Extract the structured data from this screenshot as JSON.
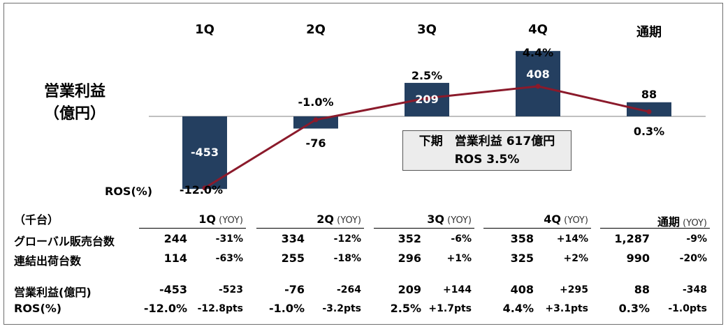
{
  "chart_data": {
    "type": "bar",
    "title_lines": [
      "営業利益",
      "（億円）"
    ],
    "categories": [
      "1Q",
      "2Q",
      "3Q",
      "4Q",
      "通期"
    ],
    "series": [
      {
        "values": [
          -453,
          -76,
          209,
          408,
          88
        ],
        "value_labels": [
          "-453",
          "-76",
          "209",
          "408",
          "88"
        ]
      },
      {
        "values": [
          -12.0,
          -1.0,
          2.5,
          4.4,
          0.3
        ],
        "value_labels": [
          "-12.0%",
          "-1.0%",
          "2.5%",
          "4.4%",
          "0.3%"
        ]
      }
    ],
    "ros_label": "ROS(%)",
    "callout": {
      "line1": "下期　営業利益 617億円",
      "line2": "ROS 3.5%"
    },
    "colors": {
      "bar": "#243f60",
      "line": "#8b1a2b"
    }
  },
  "table": {
    "unit": "（千台）",
    "headers": [
      {
        "q": "1Q",
        "yoy": "(YOY)"
      },
      {
        "q": "2Q",
        "yoy": "(YOY)"
      },
      {
        "q": "3Q",
        "yoy": "(YOY)"
      },
      {
        "q": "4Q",
        "yoy": "(YOY)"
      },
      {
        "q": "通期",
        "yoy": "(YOY)"
      }
    ],
    "rows": [
      {
        "label": "グローバル販売台数",
        "cells": [
          [
            "244",
            "-31%"
          ],
          [
            "334",
            "-12%"
          ],
          [
            "352",
            "-6%"
          ],
          [
            "358",
            "+14%"
          ],
          [
            "1,287",
            "-9%"
          ]
        ]
      },
      {
        "label": "連結出荷台数",
        "cells": [
          [
            "114",
            "-63%"
          ],
          [
            "255",
            "-18%"
          ],
          [
            "296",
            "+1%"
          ],
          [
            "325",
            "+2%"
          ],
          [
            "990",
            "-20%"
          ]
        ]
      },
      {
        "label": "営業利益(億円)",
        "cells": [
          [
            "-453",
            "-523"
          ],
          [
            "-76",
            "-264"
          ],
          [
            "209",
            "+144"
          ],
          [
            "408",
            "+295"
          ],
          [
            "88",
            "-348"
          ]
        ]
      },
      {
        "label": "ROS(%)",
        "cells": [
          [
            "-12.0%",
            "-12.8pts"
          ],
          [
            "-1.0%",
            "-3.2pts"
          ],
          [
            "2.5%",
            "+1.7pts"
          ],
          [
            "4.4%",
            "+3.1pts"
          ],
          [
            "0.3%",
            "-1.0pts"
          ]
        ]
      }
    ]
  }
}
